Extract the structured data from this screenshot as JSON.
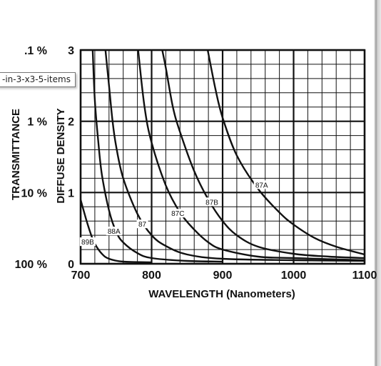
{
  "tooltip": {
    "text": "-in-3-x3-5-items"
  },
  "chart_data": {
    "type": "line",
    "xlabel": "WAVELENGTH (Nanometers)",
    "ylabel": "DIFFUSE DENSITY",
    "secondary_ylabel": "TRANSMITTANCE",
    "xlim": [
      700,
      1100
    ],
    "ylim": [
      0,
      3
    ],
    "x_ticks": [
      "700",
      "800",
      "900",
      "1000",
      "1100"
    ],
    "y_ticks": [
      "0",
      "1",
      "2",
      "3"
    ],
    "secondary_y_ticks": [
      "100 %",
      "10 %",
      "1 %",
      ".1 %"
    ],
    "grid": true,
    "series": [
      {
        "name": "89B",
        "x": [
          700,
          705,
          710,
          715,
          720,
          730,
          740,
          760,
          800
        ],
        "y": [
          0.9,
          0.72,
          0.55,
          0.4,
          0.28,
          0.14,
          0.07,
          0.03,
          0.02
        ]
      },
      {
        "name": "88A",
        "x": [
          717,
          720,
          725,
          730,
          740,
          750,
          760,
          780,
          800,
          850,
          900
        ],
        "y": [
          3.0,
          2.3,
          1.7,
          1.25,
          0.75,
          0.45,
          0.3,
          0.15,
          0.08,
          0.04,
          0.03
        ]
      },
      {
        "name": "87",
        "x": [
          735,
          740,
          745,
          750,
          760,
          780,
          800,
          820,
          850,
          900,
          1000,
          1100
        ],
        "y": [
          3.0,
          2.5,
          2.0,
          1.65,
          1.2,
          0.7,
          0.4,
          0.25,
          0.13,
          0.07,
          0.05,
          0.04
        ]
      },
      {
        "name": "87C",
        "x": [
          781,
          790,
          800,
          820,
          840,
          860,
          880,
          900,
          950,
          1000,
          1100
        ],
        "y": [
          3.0,
          2.2,
          1.7,
          1.1,
          0.72,
          0.48,
          0.3,
          0.2,
          0.1,
          0.08,
          0.05
        ]
      },
      {
        "name": "87B",
        "x": [
          815,
          820,
          830,
          840,
          860,
          880,
          900,
          920,
          950,
          1000,
          1050,
          1100
        ],
        "y": [
          3.0,
          2.75,
          2.2,
          1.85,
          1.3,
          0.9,
          0.6,
          0.4,
          0.24,
          0.14,
          0.1,
          0.08
        ]
      },
      {
        "name": "87A",
        "x": [
          879,
          890,
          900,
          920,
          950,
          980,
          1000,
          1030,
          1060,
          1100
        ],
        "y": [
          3.0,
          2.45,
          2.05,
          1.52,
          1.05,
          0.72,
          0.55,
          0.36,
          0.24,
          0.13
        ]
      }
    ]
  }
}
